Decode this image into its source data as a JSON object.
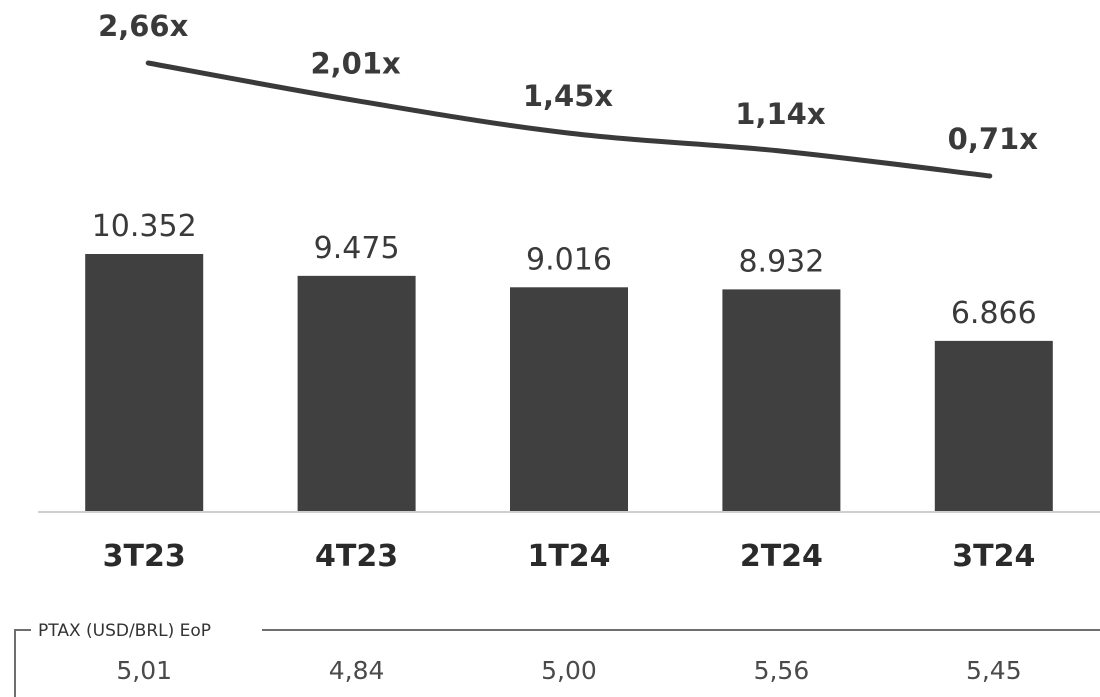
{
  "chart_data": {
    "type": "bar",
    "categories": [
      "3T23",
      "4T23",
      "1T24",
      "2T24",
      "3T24"
    ],
    "series": [
      {
        "values": [
          10352,
          9475,
          9016,
          8932,
          6866
        ],
        "labels": [
          "10.352",
          "9.475",
          "9.016",
          "8.932",
          "6.866"
        ]
      }
    ],
    "line_series": [
      {
        "values": [
          2.66,
          2.01,
          1.45,
          1.14,
          0.71
        ],
        "labels": [
          "2,66x",
          "2,01x",
          "1,45x",
          "1,14x",
          "0,71x"
        ]
      }
    ],
    "ptax": {
      "title": "PTAX (USD/BRL) EoP",
      "values": [
        "5,01",
        "4,84",
        "5,00",
        "5,56",
        "5,45"
      ]
    },
    "ylim": [
      0,
      10352
    ],
    "grid": false,
    "colors": {
      "bar": "#404040",
      "line": "#3a3a3a",
      "text": "#3a3a3a"
    }
  }
}
